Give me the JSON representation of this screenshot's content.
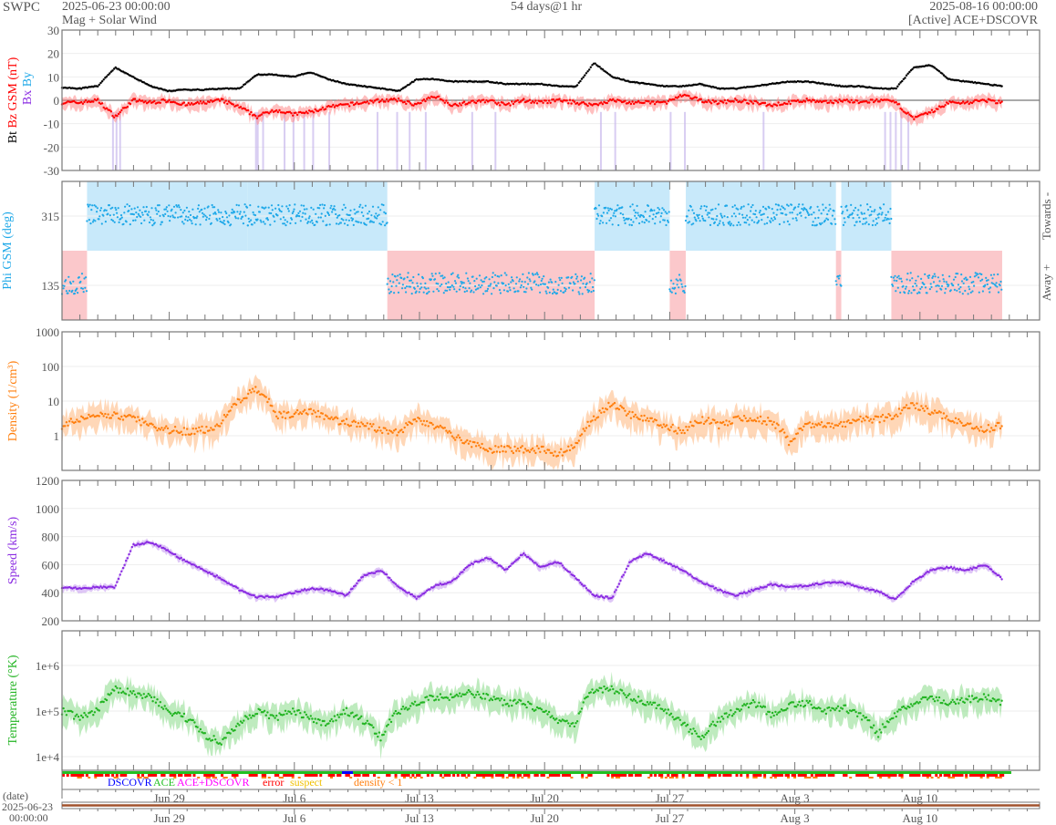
{
  "header": {
    "brand": "SWPC",
    "start_time": "2025-06-23 00:00:00",
    "subtitle": "Mag + Solar Wind",
    "span": "54 days@1 hr",
    "end_time": "2025-08-16 00:00:00",
    "source": "[Active] ACE+DSCOVR"
  },
  "colors": {
    "bt": "#000000",
    "bz": "#ff0000",
    "bx": "#8a2be2",
    "by": "#1ea8e8",
    "phi": "#1ea8e8",
    "towards_bg": "#c8e9fa",
    "away_bg": "#fbc8cb",
    "density": "#ff7f0e",
    "speed": "#8a2be2",
    "temperature": "#22b422",
    "dscovr": "#0000ff",
    "ace": "#22c022",
    "ace_dscovr": "#ff00ff",
    "error": "#ff0000",
    "suspect": "#f0c000",
    "density_lt1": "#ff7f0e"
  },
  "chart_data": [
    {
      "type": "line",
      "id": "mag",
      "ylabel_parts": [
        "Bt",
        "Bz GSM (nT)",
        "Bx",
        "By"
      ],
      "ylim": [
        -30,
        30
      ],
      "yticks": [
        "30",
        "20",
        "10",
        "0",
        "-10",
        "-20",
        "-30"
      ],
      "series": [
        {
          "name": "Bt",
          "values": [
            5.5,
            5,
            6,
            14,
            10,
            6,
            4,
            4.5,
            4.5,
            5,
            5,
            11,
            11,
            10,
            12,
            9,
            7,
            6,
            5,
            4,
            9,
            9,
            8,
            8,
            8,
            7,
            7,
            7,
            6,
            6,
            16,
            10,
            8,
            7,
            6,
            6,
            7,
            5,
            5,
            6,
            7,
            8,
            8,
            7,
            6,
            6,
            5,
            5,
            14,
            15,
            9,
            8,
            7,
            6
          ]
        },
        {
          "name": "Bz",
          "values": [
            -1,
            -1,
            0,
            -7,
            0,
            -1,
            0,
            -2,
            -1,
            0,
            -3,
            -7,
            -4,
            -6,
            -5,
            -3,
            -2,
            -1,
            0,
            0,
            -2,
            2,
            -2,
            -1,
            0,
            -2,
            0,
            -1,
            0,
            -1,
            -2,
            0,
            -1,
            -1,
            -1,
            2,
            0,
            -1,
            0,
            -1,
            -2,
            -1,
            0,
            -1,
            0,
            -1,
            0,
            -1,
            -8,
            -5,
            -1,
            -1,
            0,
            -1
          ]
        }
      ],
      "bx_spike_days": [
        2.8,
        3.0,
        3.2,
        10.8,
        10.9,
        11.2,
        12.4,
        12.9,
        13.5,
        14.0,
        14.9,
        17.6,
        18.7,
        19.4,
        20.3,
        22.9,
        24.2,
        30.1,
        30.9,
        34.0,
        34.8,
        39.2,
        46.0,
        46.3,
        46.6,
        46.9,
        47.3
      ]
    },
    {
      "type": "scatter",
      "id": "phi",
      "ylabel": "Phi GSM (deg)",
      "ylim": [
        45,
        405
      ],
      "yticks": [
        "315",
        "135"
      ],
      "right_labels": {
        "towards": "Towards -",
        "away": "Away +"
      },
      "sectors": [
        {
          "start_day": 0,
          "end_day": 1.4,
          "polarity": "away"
        },
        {
          "start_day": 1.4,
          "end_day": 10.4,
          "polarity": "towards"
        },
        {
          "start_day": 10.4,
          "end_day": 18.2,
          "polarity": "towards"
        },
        {
          "start_day": 18.2,
          "end_day": 29.8,
          "polarity": "away"
        },
        {
          "start_day": 29.8,
          "end_day": 34.0,
          "polarity": "towards"
        },
        {
          "start_day": 34.0,
          "end_day": 34.9,
          "polarity": "away"
        },
        {
          "start_day": 34.9,
          "end_day": 43.3,
          "polarity": "towards"
        },
        {
          "start_day": 43.3,
          "end_day": 43.6,
          "polarity": "away"
        },
        {
          "start_day": 43.6,
          "end_day": 46.4,
          "polarity": "towards"
        },
        {
          "start_day": 46.4,
          "end_day": 52.6,
          "polarity": "away"
        }
      ],
      "sector_mean_phi": {
        "towards": 318,
        "away": 140
      }
    },
    {
      "type": "line",
      "id": "density",
      "ylabel": "Density (1/cm³)",
      "log": true,
      "ylim": [
        0.1,
        1000
      ],
      "yticks": [
        "1000",
        "100",
        "10",
        "1"
      ],
      "values": [
        2,
        3,
        4,
        4,
        3,
        2,
        1.5,
        1.3,
        1.5,
        2,
        10,
        22,
        4,
        4,
        5,
        3,
        2.5,
        2,
        1.5,
        1.2,
        3,
        2,
        1,
        0.6,
        0.4,
        0.4,
        0.4,
        0.4,
        0.3,
        0.5,
        3,
        8,
        4,
        3,
        2,
        1.2,
        3,
        2,
        3,
        3,
        2.5,
        0.6,
        2,
        2,
        2,
        3,
        3,
        4,
        8,
        5,
        3,
        2,
        1.5,
        2
      ]
    },
    {
      "type": "line",
      "id": "speed",
      "ylabel": "Speed (km/s)",
      "ylim": [
        200,
        1200
      ],
      "yticks": [
        "1200",
        "1000",
        "800",
        "600",
        "400",
        "200"
      ],
      "values": [
        440,
        430,
        440,
        440,
        740,
        760,
        700,
        620,
        560,
        500,
        420,
        370,
        370,
        400,
        430,
        420,
        380,
        520,
        560,
        440,
        360,
        450,
        480,
        600,
        650,
        560,
        680,
        580,
        620,
        500,
        380,
        360,
        620,
        680,
        620,
        560,
        480,
        420,
        380,
        420,
        460,
        440,
        450,
        470,
        470,
        440,
        410,
        350,
        480,
        560,
        580,
        560,
        600,
        500
      ]
    },
    {
      "type": "line",
      "id": "temperature",
      "ylabel": "Temperature (°K)",
      "log": true,
      "ylim": [
        5000,
        5750000
      ],
      "yticks": [
        "1e+6",
        "1e+5",
        "1e+4"
      ],
      "values": [
        100000,
        70000,
        100000,
        300000,
        250000,
        200000,
        100000,
        70000,
        30000,
        20000,
        50000,
        100000,
        70000,
        100000,
        70000,
        50000,
        100000,
        60000,
        25000,
        100000,
        150000,
        200000,
        200000,
        250000,
        200000,
        150000,
        150000,
        100000,
        60000,
        50000,
        300000,
        300000,
        200000,
        150000,
        100000,
        50000,
        25000,
        60000,
        100000,
        150000,
        80000,
        130000,
        150000,
        100000,
        120000,
        80000,
        30000,
        80000,
        150000,
        200000,
        150000,
        180000,
        200000,
        150000
      ]
    }
  ],
  "source_legend": {
    "dscovr": "DSCOVR",
    "ace": "ACE",
    "ace_dscovr": "ACE+DSCOVR",
    "error": "error",
    "suspect": "suspect",
    "density_lt1": "density < 1"
  },
  "time_axis": {
    "title": "(date)",
    "start_date": "2025-06-23",
    "start_clock": "00:00:00",
    "labels": [
      {
        "day": 6,
        "label": "Jun 29"
      },
      {
        "day": 13,
        "label": "Jul 6"
      },
      {
        "day": 20,
        "label": "Jul 13"
      },
      {
        "day": 27,
        "label": "Jul 20"
      },
      {
        "day": 34,
        "label": "Jul 27"
      },
      {
        "day": 41,
        "label": "Aug 3"
      },
      {
        "day": 48,
        "label": "Aug 10"
      }
    ]
  }
}
